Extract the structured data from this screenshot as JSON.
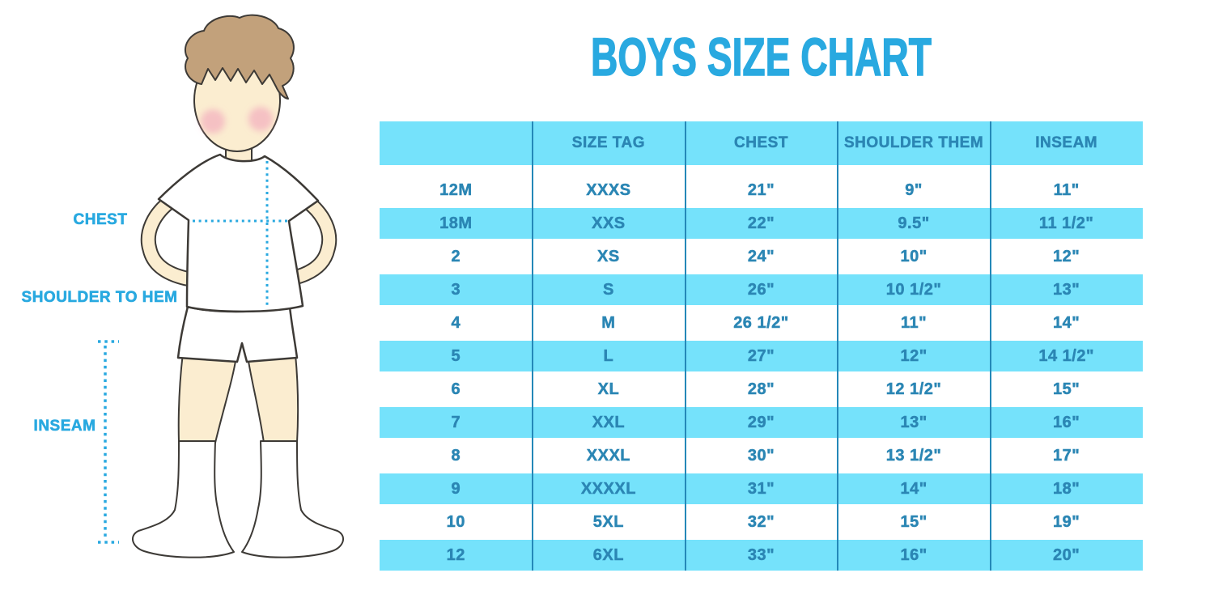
{
  "page": {
    "background": "#FFFFFF"
  },
  "colors": {
    "accent_blue": "#29A9E0",
    "band_cyan": "#75E2FB",
    "table_text": "#2B86B4",
    "divider_line": "#2488B8",
    "skin": "#FBEDD0",
    "hair": "#C2A17B",
    "outline": "#3D3A36",
    "cheek": "#F2A3BB"
  },
  "figure": {
    "labels": {
      "chest": "CHEST",
      "shoulder_to_hem": "SHOULDER TO HEM",
      "inseam": "INSEAM"
    }
  },
  "chart_data": {
    "type": "table",
    "title": "BOYS SIZE CHART",
    "columns": [
      "",
      "SIZE TAG",
      "CHEST",
      "SHOULDER THEM",
      "INSEAM"
    ],
    "rows": [
      [
        "12M",
        "XXXS",
        "21\"",
        "9\"",
        "11\""
      ],
      [
        "18M",
        "XXS",
        "22\"",
        "9.5\"",
        "11 1/2\""
      ],
      [
        "2",
        "XS",
        "24\"",
        "10\"",
        "12\""
      ],
      [
        "3",
        "S",
        "26\"",
        "10 1/2\"",
        "13\""
      ],
      [
        "4",
        "M",
        "26 1/2\"",
        "11\"",
        "14\""
      ],
      [
        "5",
        "L",
        "27\"",
        "12\"",
        "14 1/2\""
      ],
      [
        "6",
        "XL",
        "28\"",
        "12 1/2\"",
        "15\""
      ],
      [
        "7",
        "XXL",
        "29\"",
        "13\"",
        "16\""
      ],
      [
        "8",
        "XXXL",
        "30\"",
        "13 1/2\"",
        "17\""
      ],
      [
        "9",
        "XXXXL",
        "31\"",
        "14\"",
        "18\""
      ],
      [
        "10",
        "5XL",
        "32\"",
        "15\"",
        "19\""
      ],
      [
        "12",
        "6XL",
        "33\"",
        "16\"",
        "20\""
      ]
    ]
  }
}
